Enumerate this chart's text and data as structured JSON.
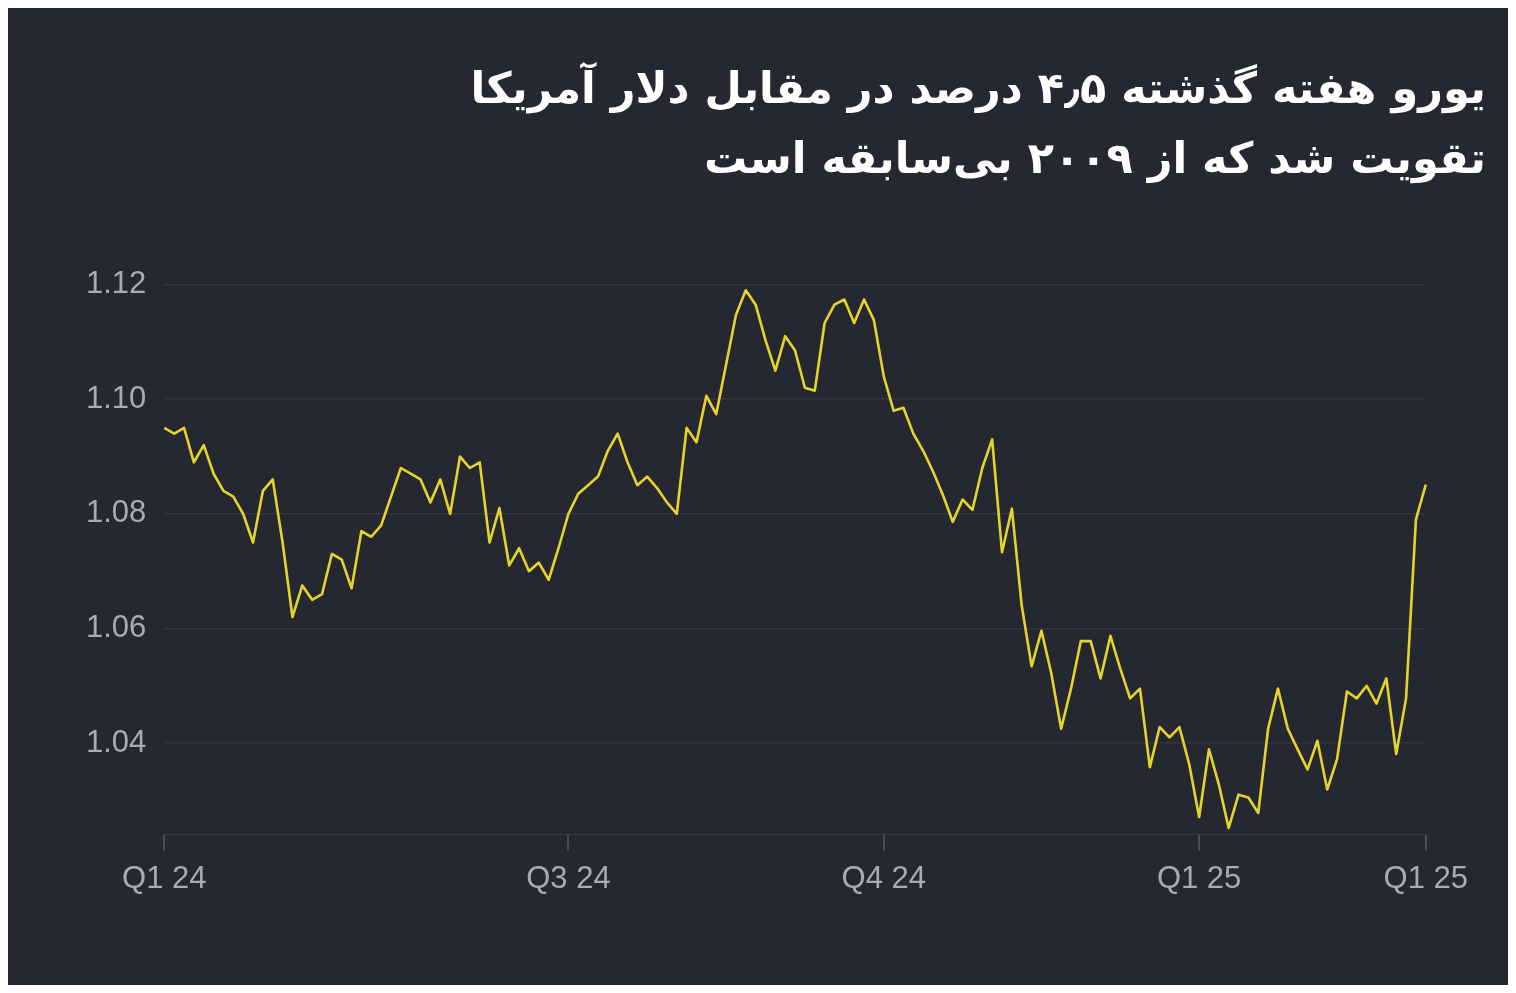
{
  "chart_data": {
    "type": "line",
    "title": "یورو هفته گذشته ۴٫۵ درصد در مقابل دلار آمریکا تقویت شد که از ۲۰۰۹ بی‌سابقه است",
    "categories": [
      "Q1 24",
      null,
      null,
      null,
      null,
      null,
      null,
      null,
      null,
      null,
      null,
      null,
      null,
      null,
      null,
      null,
      null,
      null,
      null,
      null,
      null,
      null,
      null,
      null,
      null,
      null,
      null,
      null,
      null,
      null,
      null,
      null,
      null,
      null,
      null,
      null,
      null,
      null,
      null,
      null,
      null,
      "Q3 24",
      null,
      null,
      null,
      null,
      null,
      null,
      null,
      null,
      null,
      null,
      null,
      null,
      null,
      null,
      null,
      null,
      null,
      null,
      null,
      null,
      null,
      null,
      null,
      null,
      null,
      null,
      null,
      null,
      null,
      null,
      null,
      "Q4 24",
      null,
      null,
      null,
      null,
      null,
      null,
      null,
      null,
      null,
      null,
      null,
      null,
      null,
      null,
      null,
      null,
      null,
      null,
      null,
      null,
      null,
      null,
      null,
      null,
      null,
      null,
      null,
      null,
      null,
      null,
      null,
      "Q1 25",
      null,
      null,
      null,
      null,
      null,
      null,
      null,
      null,
      null,
      null,
      null,
      null,
      null,
      null,
      null,
      null,
      null,
      null,
      null,
      null,
      null,
      null,
      "Q1 25"
    ],
    "ylim": [
      1.024,
      1.12
    ],
    "yticks": [
      {
        "value": 1.04,
        "label": "1.04"
      },
      {
        "value": 1.06,
        "label": "1.06"
      },
      {
        "value": 1.08,
        "label": "1.08"
      },
      {
        "value": 1.1,
        "label": "1.10"
      },
      {
        "value": 1.12,
        "label": "1.12"
      }
    ],
    "grid": "y",
    "legend": false,
    "line_style": "solid",
    "series": [
      {
        "color": "#e6d42c",
        "values": [
          1.095,
          1.094,
          1.095,
          1.089,
          1.092,
          1.087,
          1.084,
          1.083,
          1.08,
          1.075,
          1.084,
          1.086,
          1.075,
          1.062,
          1.0675,
          1.065,
          1.066,
          1.073,
          1.072,
          1.067,
          1.077,
          1.076,
          1.078,
          1.083,
          1.088,
          1.087,
          1.086,
          1.082,
          1.086,
          1.08,
          1.09,
          1.088,
          1.089,
          1.075,
          1.081,
          1.071,
          1.074,
          1.07,
          1.0715,
          1.0685,
          1.074,
          1.08,
          1.0835,
          1.085,
          1.0865,
          1.091,
          1.094,
          1.089,
          1.085,
          1.0865,
          1.0845,
          1.082,
          1.08,
          1.095,
          1.0925,
          1.1006,
          1.0974,
          1.106,
          1.1147,
          1.119,
          1.1165,
          1.1103,
          1.105,
          1.111,
          1.1085,
          1.102,
          1.1015,
          1.1133,
          1.1165,
          1.1174,
          1.1133,
          1.1174,
          1.1138,
          1.104,
          1.098,
          1.0985,
          1.094,
          1.091,
          1.0874,
          1.0833,
          1.0786,
          1.0825,
          1.0807,
          1.088,
          1.093,
          1.0733,
          1.0809,
          1.064,
          1.0534,
          1.0596,
          1.0522,
          1.0425,
          1.0495,
          1.0578,
          1.0578,
          1.0513,
          1.0587,
          1.053,
          1.0478,
          1.0495,
          1.0358,
          1.0428,
          1.041,
          1.0428,
          1.0363,
          1.0271,
          1.0389,
          1.0328,
          1.0252,
          1.031,
          1.0305,
          1.0278,
          1.0425,
          1.0495,
          1.0425,
          1.0389,
          1.0354,
          1.0404,
          1.0319,
          1.0372,
          1.049,
          1.0478,
          1.05,
          1.0469,
          1.0513,
          1.0381,
          1.0478,
          1.079,
          1.0851
        ]
      }
    ]
  }
}
